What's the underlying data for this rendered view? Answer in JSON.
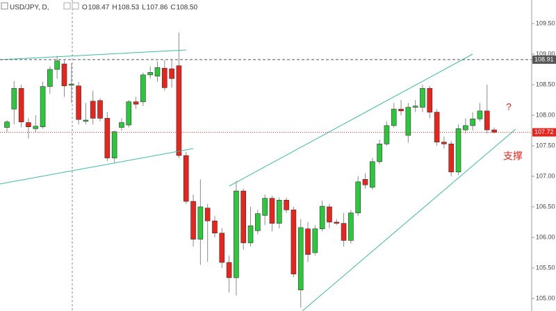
{
  "chart_data": {
    "type": "candlestick",
    "header": {
      "symbol": "USD/JPY, D,",
      "ohlc": [
        {
          "key": "O",
          "value": "108.47"
        },
        {
          "key": "H",
          "value": "108.53"
        },
        {
          "key": "L",
          "value": "107.86"
        },
        {
          "key": "C",
          "value": "108.50"
        }
      ]
    },
    "up_color": "#2bc83b",
    "down_color": "#e8241c",
    "ylim": [
      104.795,
      109.886
    ],
    "yticks": [
      {
        "value": 105,
        "label": "105.00"
      },
      {
        "value": 105.5,
        "label": "105.50"
      },
      {
        "value": 106,
        "label": "106.00"
      },
      {
        "value": 106.5,
        "label": "106.50"
      },
      {
        "value": 107,
        "label": "107.00"
      },
      {
        "value": 107.5,
        "label": "107.50"
      },
      {
        "value": 108,
        "label": "108.00"
      },
      {
        "value": 108.5,
        "label": "108.50"
      },
      {
        "value": 109,
        "label": "109.00"
      },
      {
        "value": 109.5,
        "label": "109.50"
      }
    ],
    "price_markers": [
      {
        "value": 108.91,
        "label": "108.91",
        "color": "#555555"
      },
      {
        "value": 107.72,
        "label": "107.72",
        "color": "#e8241c"
      }
    ],
    "annotations": [
      "?",
      "支撑"
    ],
    "open": [
      107.8,
      108.1,
      108.44,
      107.88,
      107.78,
      107.81,
      108.47,
      108.75,
      108.84,
      108.49,
      108.48,
      107.9,
      108.23,
      108.24,
      107.95,
      107.3,
      107.8,
      107.84,
      108.22,
      108.22,
      108.66,
      108.64,
      108.77,
      108.76,
      108.81,
      107.34,
      106.59,
      105.97,
      106.48,
      106.27,
      106.07,
      105.59,
      105.34,
      106.76,
      105.91,
      106.11,
      106.36,
      106.64,
      106.23,
      106.61,
      106.45,
      105.14,
      106.14,
      105.75,
      106.14,
      106.5,
      106.25,
      106.23,
      105.95,
      106.4,
      106.95,
      106.82,
      107.24,
      107.53,
      107.83,
      108.1,
      107.67,
      108.13,
      108.13,
      108.44,
      108.05,
      107.56,
      107.53,
      107.07,
      107.76,
      107.83,
      107.94,
      108.07,
      107.76
    ],
    "high": [
      107.92,
      108.56,
      108.5,
      107.95,
      108.0,
      108.55,
      108.8,
      108.97,
      108.9,
      108.85,
      108.55,
      108.2,
      108.4,
      108.28,
      108.05,
      107.75,
      107.95,
      108.25,
      108.3,
      108.7,
      108.8,
      108.88,
      108.9,
      108.9,
      109.35,
      107.4,
      106.7,
      106.95,
      106.55,
      106.35,
      106.15,
      105.7,
      106.92,
      106.8,
      106.5,
      106.45,
      106.7,
      106.68,
      106.65,
      106.65,
      106.5,
      106.3,
      106.25,
      106.2,
      106.6,
      106.55,
      106.3,
      106.4,
      106.45,
      107.0,
      107.05,
      107.3,
      107.6,
      107.9,
      108.2,
      108.25,
      108.2,
      108.25,
      108.5,
      108.48,
      108.1,
      107.65,
      107.58,
      107.85,
      107.95,
      108.05,
      108.2,
      108.5,
      107.8
    ],
    "low": [
      107.72,
      107.85,
      107.8,
      107.62,
      107.72,
      107.78,
      108.35,
      108.6,
      108.3,
      108.2,
      107.85,
      107.85,
      107.85,
      107.9,
      107.25,
      107.22,
      107.75,
      107.8,
      108.1,
      108.15,
      108.6,
      108.55,
      108.4,
      108.45,
      107.3,
      106.55,
      105.85,
      105.55,
      105.6,
      106.0,
      105.5,
      105.1,
      105.05,
      105.8,
      105.85,
      106.05,
      106.2,
      106.1,
      106.15,
      106.4,
      105.35,
      104.85,
      105.6,
      105.7,
      106.1,
      106.15,
      106.2,
      105.85,
      105.9,
      106.35,
      106.8,
      106.78,
      107.2,
      107.5,
      107.8,
      108.0,
      107.55,
      108.05,
      108.05,
      107.95,
      107.5,
      107.45,
      107.0,
      107.02,
      107.7,
      107.75,
      107.9,
      107.7,
      107.7
    ],
    "close": [
      107.89,
      108.44,
      107.89,
      107.81,
      107.82,
      108.47,
      108.75,
      108.89,
      108.48,
      108.51,
      107.93,
      107.92,
      107.95,
      107.95,
      107.3,
      107.73,
      107.88,
      108.22,
      108.18,
      108.66,
      108.7,
      108.78,
      108.45,
      108.6,
      107.34,
      106.59,
      105.97,
      106.5,
      106.27,
      106.07,
      105.59,
      105.34,
      106.76,
      105.91,
      106.19,
      106.39,
      106.64,
      106.23,
      106.61,
      106.45,
      105.4,
      106.16,
      105.72,
      106.14,
      106.51,
      106.25,
      106.23,
      105.95,
      106.4,
      106.91,
      106.86,
      107.24,
      107.53,
      107.83,
      108.1,
      108.07,
      108.13,
      108.15,
      108.44,
      108.05,
      107.56,
      107.53,
      107.07,
      107.78,
      107.83,
      107.94,
      108.07,
      107.76,
      107.72
    ]
  }
}
